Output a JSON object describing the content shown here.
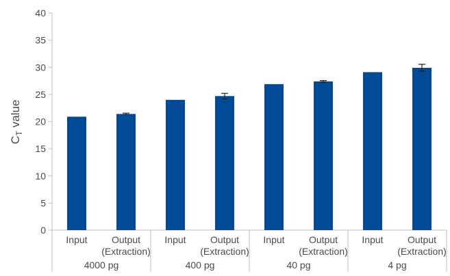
{
  "chart_data": {
    "type": "bar",
    "ylabel_main": "C",
    "ylabel_sub": "T",
    "ylabel_rest": " value",
    "ylim": [
      0,
      40
    ],
    "yticks": [
      0,
      5,
      10,
      15,
      20,
      25,
      30,
      35,
      40
    ],
    "grid": false,
    "bar_color": "#004a97",
    "groups": [
      {
        "label": "4000 pg",
        "bars": [
          {
            "label": [
              "Input"
            ],
            "value": 20.9,
            "error": 0
          },
          {
            "label": [
              "Output",
              "(Extraction)"
            ],
            "value": 21.4,
            "error": 0.15
          }
        ]
      },
      {
        "label": "400 pg",
        "bars": [
          {
            "label": [
              "Input"
            ],
            "value": 24.0,
            "error": 0
          },
          {
            "label": [
              "Output",
              "(Extraction)"
            ],
            "value": 24.7,
            "error": 0.5
          }
        ]
      },
      {
        "label": "40 pg",
        "bars": [
          {
            "label": [
              "Input"
            ],
            "value": 26.9,
            "error": 0
          },
          {
            "label": [
              "Output",
              "(Extraction)"
            ],
            "value": 27.4,
            "error": 0.15
          }
        ]
      },
      {
        "label": "4 pg",
        "bars": [
          {
            "label": [
              "Input"
            ],
            "value": 29.1,
            "error": 0
          },
          {
            "label": [
              "Output",
              "(Extraction)"
            ],
            "value": 29.9,
            "error": 0.65
          }
        ]
      }
    ]
  }
}
